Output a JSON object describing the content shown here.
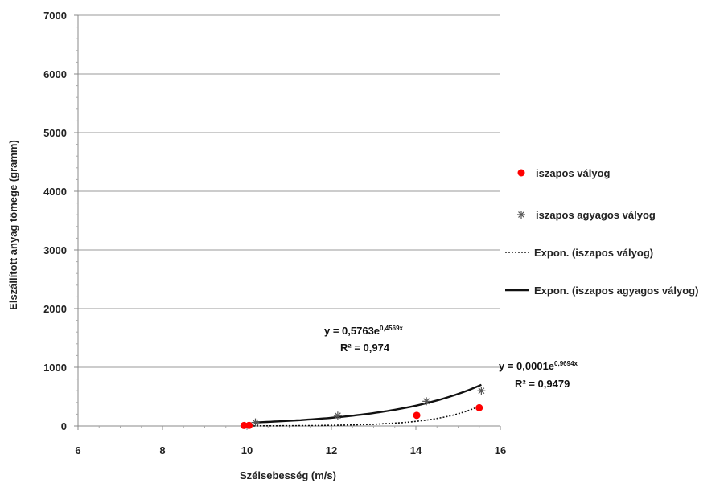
{
  "chart_data": {
    "type": "scatter",
    "xlabel": "Szélsebesség (m/s)",
    "ylabel": "Elszállított anyag tömege (gramm)",
    "xlim": [
      6,
      16
    ],
    "ylim": [
      0,
      7000
    ],
    "x_ticks": [
      "6",
      "8",
      "10",
      "12",
      "14",
      "16"
    ],
    "y_ticks": [
      "0",
      "1000",
      "2000",
      "3000",
      "4000",
      "5000",
      "6000",
      "7000"
    ],
    "grid": "horizontal",
    "legend_position": "right",
    "series": [
      {
        "name": "iszapos vályog",
        "marker": "circle",
        "color": "#ff0000",
        "points": [
          {
            "x": 9.93,
            "y": 8
          },
          {
            "x": 10.05,
            "y": 10
          },
          {
            "x": 14.02,
            "y": 180
          },
          {
            "x": 15.5,
            "y": 310
          }
        ]
      },
      {
        "name": "iszapos agyagos vályog",
        "marker": "asterisk",
        "color": "#555555",
        "points": [
          {
            "x": 10.2,
            "y": 60
          },
          {
            "x": 12.15,
            "y": 175
          },
          {
            "x": 14.25,
            "y": 420
          },
          {
            "x": 15.55,
            "y": 600
          }
        ]
      }
    ],
    "trendlines": [
      {
        "name": "Expon. (iszapos vályog)",
        "style": "dotted",
        "a": 0.0001,
        "b": 0.9694,
        "x_range": [
          10,
          15.5
        ],
        "equation": "y = 0,0001e",
        "exponent": "0,9694x",
        "r2": "R² = 0,9479"
      },
      {
        "name": "Expon. (iszapos agyagos vályog)",
        "style": "solid",
        "a": 0.5763,
        "b": 0.4569,
        "x_range": [
          10.2,
          15.55
        ],
        "equation": "y = 0,5763e",
        "exponent": "0,4569x",
        "r2": "R² = 0,974"
      }
    ]
  }
}
